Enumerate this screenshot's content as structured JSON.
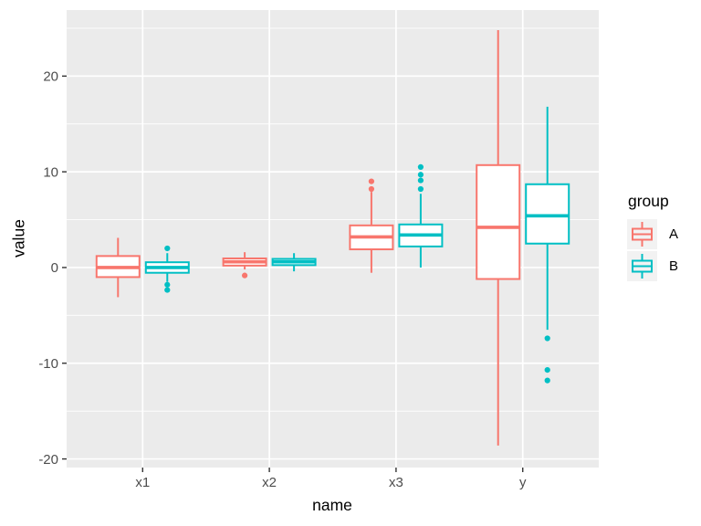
{
  "figure": {
    "background": "#FFFFFF",
    "panel_background": "#EBEBEB",
    "grid_color": "#FFFFFF",
    "tick_color": "#333333",
    "tick_label_color": "#4D4D4D",
    "axis_title_color": "#000000",
    "legend_key_background": "#F2F2F2"
  },
  "chart_data": {
    "type": "boxplot",
    "title": "",
    "xlabel": "name",
    "ylabel": "value",
    "categories": [
      "x1",
      "x2",
      "x3",
      "y"
    ],
    "y_axis": {
      "ticks": [
        20,
        10,
        0,
        -10,
        -20
      ],
      "minor_ticks": [
        25,
        15,
        5,
        -5,
        -15
      ],
      "range": [
        -20.9,
        26.9
      ],
      "grid": "major-and-minor"
    },
    "x_axis": {
      "grid": "major-at-category-centers"
    },
    "legend": {
      "title": "group",
      "position": "right",
      "entries": [
        {
          "label": "A",
          "color": "#F8766D"
        },
        {
          "label": "B",
          "color": "#00BFC4"
        }
      ]
    },
    "series": [
      {
        "name": "A",
        "color": "#F8766D",
        "boxes": [
          {
            "category": "x1",
            "whisker_low": -3.1,
            "q1": -1.0,
            "median": 0.0,
            "q3": 1.2,
            "whisker_high": 3.1,
            "outliers": []
          },
          {
            "category": "x2",
            "whisker_low": -0.2,
            "q1": 0.2,
            "median": 0.6,
            "q3": 0.95,
            "whisker_high": 1.6,
            "outliers": [
              -0.83
            ]
          },
          {
            "category": "x3",
            "whisker_low": -0.55,
            "q1": 1.9,
            "median": 3.2,
            "q3": 4.4,
            "whisker_high": 7.9,
            "outliers": [
              8.2,
              9.0
            ]
          },
          {
            "category": "y",
            "whisker_low": -18.6,
            "q1": -1.2,
            "median": 4.2,
            "q3": 10.7,
            "whisker_high": 24.8,
            "outliers": []
          }
        ]
      },
      {
        "name": "B",
        "color": "#00BFC4",
        "boxes": [
          {
            "category": "x1",
            "whisker_low": -1.5,
            "q1": -0.55,
            "median": 0.0,
            "q3": 0.55,
            "whisker_high": 1.5,
            "outliers": [
              2.0,
              -1.8,
              -2.35
            ]
          },
          {
            "category": "x2",
            "whisker_low": -0.4,
            "q1": 0.25,
            "median": 0.6,
            "q3": 0.9,
            "whisker_high": 1.5,
            "outliers": []
          },
          {
            "category": "x3",
            "whisker_low": 0.0,
            "q1": 2.2,
            "median": 3.4,
            "q3": 4.5,
            "whisker_high": 7.7,
            "outliers": [
              8.2,
              9.1,
              9.7,
              10.5
            ]
          },
          {
            "category": "y",
            "whisker_low": -6.5,
            "q1": 2.5,
            "median": 5.4,
            "q3": 8.7,
            "whisker_high": 16.8,
            "outliers": [
              -7.4,
              -10.7,
              -11.8
            ]
          }
        ]
      }
    ]
  }
}
